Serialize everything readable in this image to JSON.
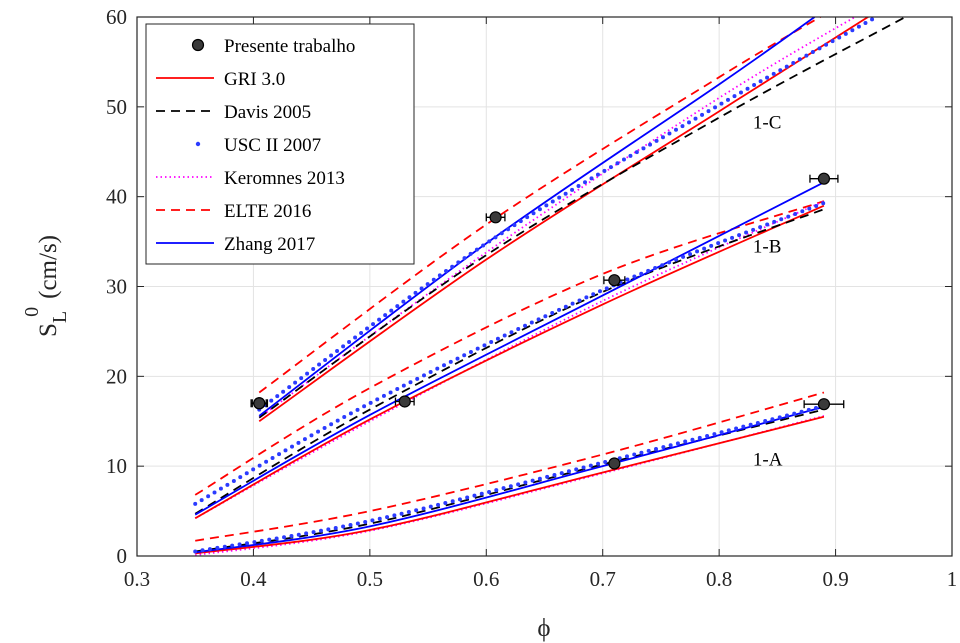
{
  "chart_data": {
    "type": "line",
    "xlabel": "ϕ",
    "ylabel": {
      "main": "S",
      "sub": "L",
      "sup": "0",
      "unit": "(cm/s)"
    },
    "xlim": [
      0.3,
      1.0
    ],
    "ylim": [
      0,
      60
    ],
    "xticks": [
      0.3,
      0.4,
      0.5,
      0.6,
      0.7,
      0.8,
      0.9,
      1.0
    ],
    "xtick_labels": [
      "0.3",
      "0.4",
      "0.5",
      "0.6",
      "0.7",
      "0.8",
      "0.9",
      "1"
    ],
    "yticks": [
      0,
      10,
      20,
      30,
      40,
      50,
      60
    ],
    "ytick_labels": [
      "0",
      "10",
      "20",
      "30",
      "40",
      "50",
      "60"
    ],
    "grid": true,
    "legend_position": "top-left",
    "groups": [
      {
        "label": "1-A",
        "measurements": [
          {
            "x": 0.405,
            "y": 17.0,
            "xerr": 0.007
          },
          {
            "x": 0.71,
            "y": 10.3,
            "xerr": 0.0
          },
          {
            "x": 0.89,
            "y": 16.9,
            "xerr": 0.017
          }
        ],
        "models": [
          {
            "name": "GRI 3.0",
            "x": [
              0.35,
              0.5,
              0.7,
              0.89
            ],
            "y": [
              0.3,
              2.9,
              9.3,
              15.5
            ]
          },
          {
            "name": "Davis 2005",
            "x": [
              0.35,
              0.5,
              0.7,
              0.89
            ],
            "y": [
              0.5,
              3.6,
              10.2,
              16.3
            ]
          },
          {
            "name": "USC II 2007",
            "x": [
              0.35,
              0.5,
              0.7,
              0.89
            ],
            "y": [
              0.5,
              3.9,
              10.4,
              16.7
            ]
          },
          {
            "name": "Keromnes 2013",
            "x": [
              0.35,
              0.5,
              0.7,
              0.89
            ],
            "y": [
              0.1,
              2.8,
              9.2,
              15.6
            ]
          },
          {
            "name": "ELTE 2016",
            "x": [
              0.35,
              0.5,
              0.7,
              0.89
            ],
            "y": [
              1.7,
              5.0,
              11.3,
              18.2
            ]
          },
          {
            "name": "Zhang 2017",
            "x": [
              0.35,
              0.5,
              0.7,
              0.89
            ],
            "y": [
              0.4,
              3.3,
              10.0,
              16.6
            ]
          }
        ]
      },
      {
        "label": "1-B",
        "measurements": [
          {
            "x": 0.53,
            "y": 17.2,
            "xerr": 0.008
          },
          {
            "x": 0.71,
            "y": 30.7,
            "xerr": 0.009
          },
          {
            "x": 0.89,
            "y": 42.0,
            "xerr": 0.012
          }
        ],
        "models": [
          {
            "name": "GRI 3.0",
            "x": [
              0.35,
              0.5,
              0.7,
              0.89
            ],
            "y": [
              4.2,
              15.2,
              28.0,
              39.0
            ]
          },
          {
            "name": "Davis 2005",
            "x": [
              0.35,
              0.5,
              0.7,
              0.89
            ],
            "y": [
              4.7,
              16.3,
              29.4,
              38.6
            ]
          },
          {
            "name": "USC II 2007",
            "x": [
              0.35,
              0.5,
              0.7,
              0.89
            ],
            "y": [
              5.8,
              17.0,
              29.6,
              39.3
            ]
          },
          {
            "name": "Keromnes 2013",
            "x": [
              0.35,
              0.5,
              0.7,
              0.89
            ],
            "y": [
              4.2,
              15.0,
              28.4,
              39.5
            ]
          },
          {
            "name": "ELTE 2016",
            "x": [
              0.35,
              0.5,
              0.7,
              0.89
            ],
            "y": [
              6.8,
              18.7,
              31.4,
              39.5
            ]
          },
          {
            "name": "Zhang 2017",
            "x": [
              0.35,
              0.5,
              0.7,
              0.89
            ],
            "y": [
              4.6,
              15.7,
              29.0,
              41.6
            ]
          }
        ]
      },
      {
        "label": "1-C",
        "measurements": [
          {
            "x": 0.405,
            "y": 17.0,
            "xerr": 0.006
          },
          {
            "x": 0.608,
            "y": 37.7,
            "xerr": 0.008
          }
        ],
        "models": [
          {
            "name": "GRI 3.0",
            "x": [
              0.405,
              0.6,
              0.8,
              0.94
            ],
            "y": [
              15.0,
              33.0,
              49.5,
              61.0
            ]
          },
          {
            "name": "Davis 2005",
            "x": [
              0.405,
              0.6,
              0.8,
              0.96
            ],
            "y": [
              15.4,
              33.5,
              48.8,
              60.0
            ]
          },
          {
            "name": "USC II 2007",
            "x": [
              0.405,
              0.6,
              0.8,
              0.935
            ],
            "y": [
              16.3,
              34.8,
              50.2,
              60.0
            ]
          },
          {
            "name": "Keromnes 2013",
            "x": [
              0.405,
              0.6,
              0.8,
              0.93
            ],
            "y": [
              15.4,
              33.8,
              51.0,
              61.0
            ]
          },
          {
            "name": "ELTE 2016",
            "x": [
              0.405,
              0.6,
              0.8,
              0.9
            ],
            "y": [
              18.2,
              36.9,
              53.3,
              61.0
            ]
          },
          {
            "name": "Zhang 2017",
            "x": [
              0.405,
              0.6,
              0.8,
              0.882
            ],
            "y": [
              15.6,
              34.8,
              52.5,
              60.0
            ]
          }
        ]
      }
    ],
    "legend": [
      {
        "name": "Presente trabalho",
        "kind": "marker",
        "color": "#1a1a1a"
      },
      {
        "name": "GRI 3.0",
        "kind": "solid",
        "color": "#ff0000"
      },
      {
        "name": "Davis 2005",
        "kind": "dashed",
        "color": "#000000"
      },
      {
        "name": "USC II 2007",
        "kind": "dotted-big",
        "color": "#2b3bff"
      },
      {
        "name": "Keromnes 2013",
        "kind": "dotted",
        "color": "#ff00ff"
      },
      {
        "name": "ELTE 2016",
        "kind": "dashed",
        "color": "#ff0000"
      },
      {
        "name": "Zhang 2017",
        "kind": "solid",
        "color": "#0000ff"
      }
    ]
  }
}
